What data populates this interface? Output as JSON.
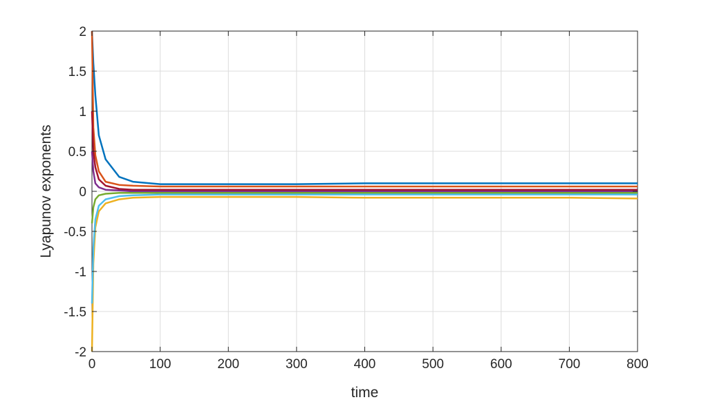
{
  "chart_data": {
    "type": "line",
    "title": "",
    "xlabel": "time",
    "ylabel": "Lyapunov exponents",
    "xlim": [
      0,
      800
    ],
    "ylim": [
      -2,
      2
    ],
    "xticks": [
      0,
      100,
      200,
      300,
      400,
      500,
      600,
      700,
      800
    ],
    "xtick_labels": [
      "0",
      "100",
      "200",
      "300",
      "400",
      "500",
      "600",
      "700",
      "800"
    ],
    "yticks": [
      2,
      1.5,
      1,
      0.5,
      0,
      -0.5,
      -1,
      -1.5,
      -2
    ],
    "ytick_labels": [
      "2",
      "1.5",
      "1",
      "0.5",
      "0",
      "-0.5",
      "-1",
      "-1.5",
      "-2"
    ],
    "grid": true,
    "legend": "none",
    "series": [
      {
        "color": "#0072BD",
        "x": [
          0,
          2,
          5,
          10,
          20,
          40,
          60,
          100,
          150,
          200,
          300,
          400,
          500,
          600,
          700,
          800
        ],
        "values": [
          2,
          1.6,
          1.2,
          0.7,
          0.4,
          0.18,
          0.12,
          0.09,
          0.09,
          0.09,
          0.09,
          0.1,
          0.1,
          0.1,
          0.1,
          0.1
        ]
      },
      {
        "color": "#D95319",
        "x": [
          0,
          2,
          5,
          10,
          20,
          40,
          60,
          100,
          150,
          200,
          300,
          400,
          500,
          600,
          700,
          800
        ],
        "values": [
          2,
          0.8,
          0.45,
          0.25,
          0.12,
          0.08,
          0.07,
          0.06,
          0.06,
          0.06,
          0.06,
          0.06,
          0.06,
          0.06,
          0.06,
          0.06
        ]
      },
      {
        "color": "#EDB120",
        "x": [
          0,
          2,
          5,
          10,
          20,
          40,
          60,
          100,
          150,
          200,
          300,
          400,
          500,
          600,
          700,
          800
        ],
        "values": [
          -2,
          -0.9,
          -0.45,
          -0.25,
          -0.15,
          -0.1,
          -0.08,
          -0.07,
          -0.07,
          -0.07,
          -0.07,
          -0.08,
          -0.08,
          -0.08,
          -0.08,
          -0.09
        ]
      },
      {
        "color": "#7E2F8E",
        "x": [
          0,
          2,
          5,
          10,
          20,
          40,
          60,
          100,
          150,
          200,
          300,
          400,
          500,
          600,
          700,
          800
        ],
        "values": [
          0.5,
          0.25,
          0.1,
          0.05,
          0.02,
          0.01,
          0.0,
          0.0,
          0.0,
          0.0,
          0.0,
          0.0,
          0.0,
          0.0,
          0.0,
          0.0
        ]
      },
      {
        "color": "#77AC30",
        "x": [
          0,
          2,
          5,
          10,
          20,
          40,
          60,
          100,
          150,
          200,
          300,
          400,
          500,
          600,
          700,
          800
        ],
        "values": [
          -0.4,
          -0.2,
          -0.1,
          -0.05,
          -0.03,
          -0.02,
          -0.02,
          -0.02,
          -0.02,
          -0.02,
          -0.02,
          -0.02,
          -0.02,
          -0.02,
          -0.02,
          -0.02
        ]
      },
      {
        "color": "#4DBEEE",
        "x": [
          0,
          2,
          5,
          10,
          20,
          40,
          60,
          100,
          150,
          200,
          300,
          400,
          500,
          600,
          700,
          800
        ],
        "values": [
          -1.4,
          -0.7,
          -0.35,
          -0.18,
          -0.1,
          -0.06,
          -0.05,
          -0.04,
          -0.04,
          -0.04,
          -0.04,
          -0.04,
          -0.04,
          -0.04,
          -0.04,
          -0.04
        ]
      },
      {
        "color": "#A2142F",
        "x": [
          0,
          2,
          5,
          10,
          20,
          40,
          60,
          100,
          150,
          200,
          300,
          400,
          500,
          600,
          700,
          800
        ],
        "values": [
          1.0,
          0.5,
          0.3,
          0.15,
          0.07,
          0.03,
          0.02,
          0.02,
          0.02,
          0.02,
          0.02,
          0.02,
          0.02,
          0.02,
          0.02,
          0.02
        ]
      }
    ]
  }
}
